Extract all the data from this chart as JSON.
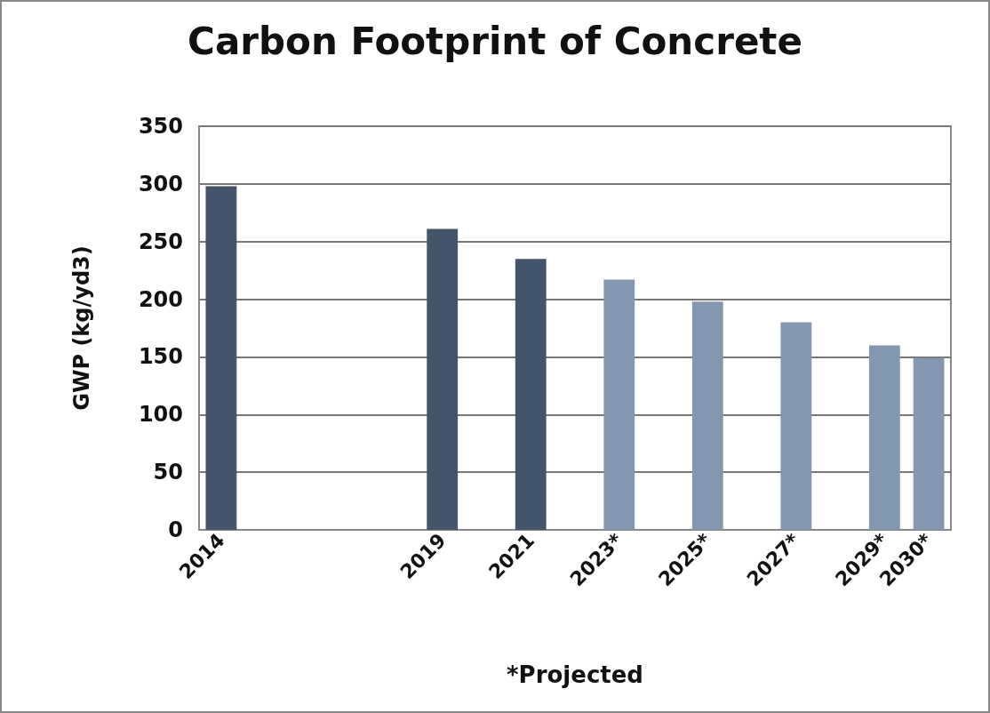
{
  "chart_data": {
    "type": "bar",
    "title": "Carbon Footprint of Concrete",
    "xlabel": "*Projected",
    "ylabel": "GWP (kg/yd3)",
    "categories": [
      "2014",
      null,
      null,
      null,
      null,
      "2019",
      null,
      "2021",
      null,
      "2023*",
      null,
      "2025*",
      null,
      "2027*",
      null,
      "2029*",
      "2030*"
    ],
    "values": [
      298,
      null,
      null,
      null,
      null,
      261,
      null,
      235,
      null,
      217,
      null,
      198,
      null,
      180,
      null,
      160,
      149
    ],
    "colors": [
      "#44546a",
      null,
      null,
      null,
      null,
      "#44546a",
      null,
      "#44546a",
      null,
      "#8497b0",
      null,
      "#8497b0",
      null,
      "#8497b0",
      null,
      "#8497b0",
      "#8497b0"
    ],
    "ylim": [
      0,
      350
    ],
    "yticks": [
      0,
      50,
      100,
      150,
      200,
      250,
      300,
      350
    ],
    "grid": "y"
  }
}
